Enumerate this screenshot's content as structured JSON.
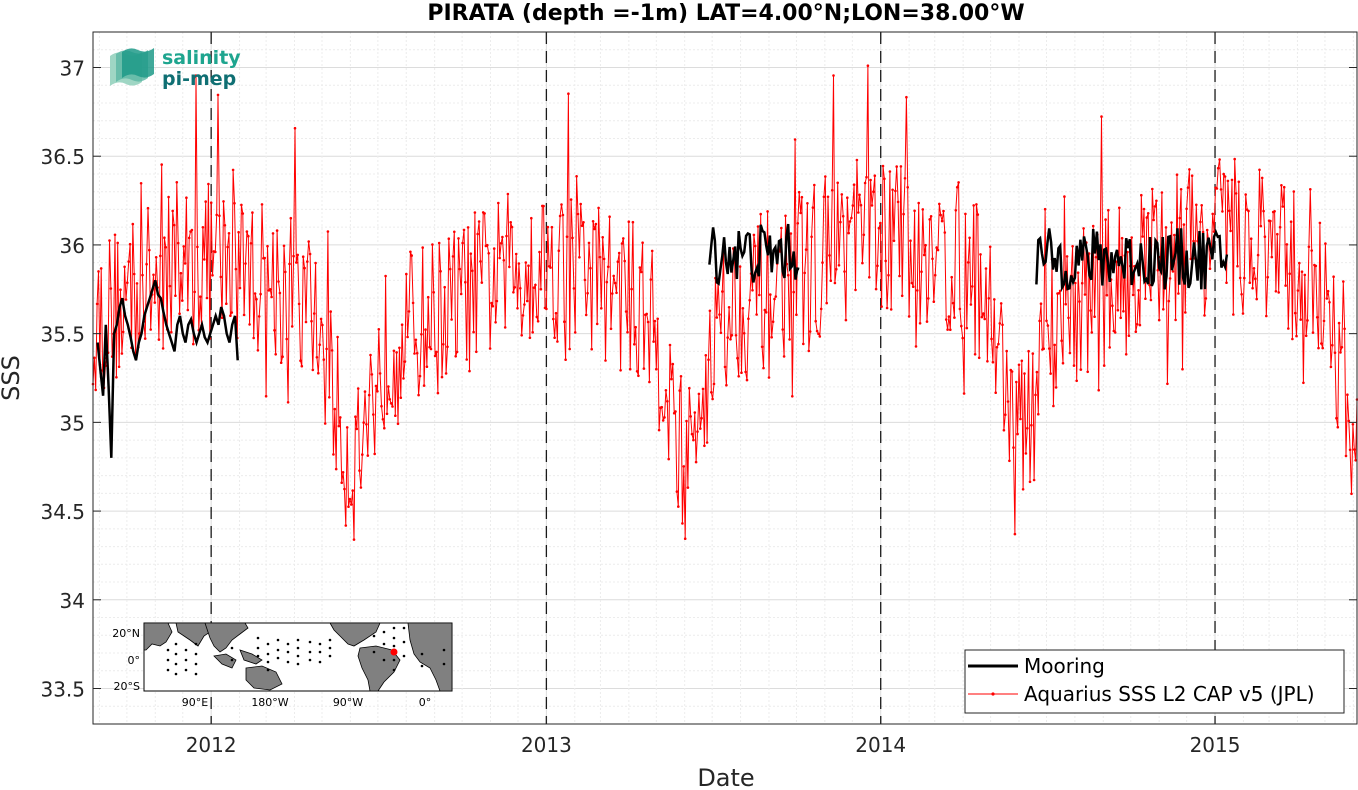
{
  "chart_data": {
    "type": "line",
    "title": "PIRATA (depth =-1m) LAT=4.00°N;LON=38.00°W",
    "xlabel": "Date",
    "ylabel": "SSS",
    "xlim": [
      "2011-08-25",
      "2015-06-05"
    ],
    "ylim": [
      33.3,
      37.2
    ],
    "x_ticks": [
      {
        "date": "2012-01-01",
        "label": "2012"
      },
      {
        "date": "2013-01-01",
        "label": "2013"
      },
      {
        "date": "2014-01-01",
        "label": "2014"
      },
      {
        "date": "2015-01-01",
        "label": "2015"
      }
    ],
    "y_ticks": [
      {
        "value": 33.5,
        "label": "33.5"
      },
      {
        "value": 34,
        "label": "34"
      },
      {
        "value": 34.5,
        "label": "34.5"
      },
      {
        "value": 35,
        "label": "35"
      },
      {
        "value": 35.5,
        "label": "35.5"
      },
      {
        "value": 36,
        "label": "36"
      },
      {
        "value": 36.5,
        "label": "36.5"
      },
      {
        "value": 37,
        "label": "37"
      }
    ],
    "vlines": [
      "2012-01-01",
      "2013-01-01",
      "2014-01-01",
      "2015-01-01"
    ],
    "grid": "on",
    "legend_position": "bottom-right",
    "series": [
      {
        "name": "Mooring",
        "color": "#000000",
        "style": "thick line",
        "segments": [
          {
            "x": [
              "2011-08-30",
              "2011-09-02",
              "2011-09-05",
              "2011-09-08",
              "2011-09-11",
              "2011-09-14",
              "2011-09-17",
              "2011-09-20",
              "2011-09-23",
              "2011-09-26",
              "2011-09-29",
              "2011-10-02",
              "2011-10-05",
              "2011-10-08",
              "2011-10-11",
              "2011-10-14",
              "2011-10-17",
              "2011-10-20",
              "2011-10-23",
              "2011-10-26",
              "2011-10-29",
              "2011-11-01",
              "2011-11-04",
              "2011-11-07",
              "2011-11-10",
              "2011-11-13",
              "2011-11-16",
              "2011-11-19",
              "2011-11-22",
              "2011-11-25",
              "2011-11-28",
              "2011-12-01",
              "2011-12-04",
              "2011-12-07",
              "2011-12-10",
              "2011-12-13",
              "2011-12-16",
              "2011-12-19",
              "2011-12-22",
              "2011-12-25",
              "2011-12-28",
              "2011-12-31",
              "2012-01-03",
              "2012-01-06",
              "2012-01-09",
              "2012-01-12",
              "2012-01-15",
              "2012-01-18",
              "2012-01-21",
              "2012-01-24",
              "2012-01-27",
              "2012-01-30"
            ],
            "y": [
              35.45,
              35.3,
              35.15,
              35.55,
              35.2,
              34.8,
              35.5,
              35.55,
              35.65,
              35.7,
              35.6,
              35.55,
              35.48,
              35.4,
              35.35,
              35.45,
              35.5,
              35.6,
              35.65,
              35.7,
              35.75,
              35.8,
              35.72,
              35.7,
              35.62,
              35.55,
              35.5,
              35.45,
              35.4,
              35.55,
              35.6,
              35.5,
              35.45,
              35.55,
              35.58,
              35.5,
              35.45,
              35.5,
              35.55,
              35.48,
              35.45,
              35.5,
              35.55,
              35.6,
              35.55,
              35.65,
              35.6,
              35.5,
              35.45,
              35.55,
              35.6,
              35.35
            ]
          }
        ]
      },
      {
        "name": "Aquarius SSS L2 CAP v5 (JPL)",
        "color": "#ff0000",
        "style": "thin line with point markers"
      }
    ]
  },
  "inset_map": {
    "lat_labels": [
      "20°N",
      "0°",
      "20°S"
    ],
    "lon_labels": [
      "90°E",
      "180°W",
      "90°W",
      "0°"
    ],
    "marker_color": "#ff0000"
  },
  "logo": {
    "line1": "salinity",
    "line2": "pi-mep"
  }
}
